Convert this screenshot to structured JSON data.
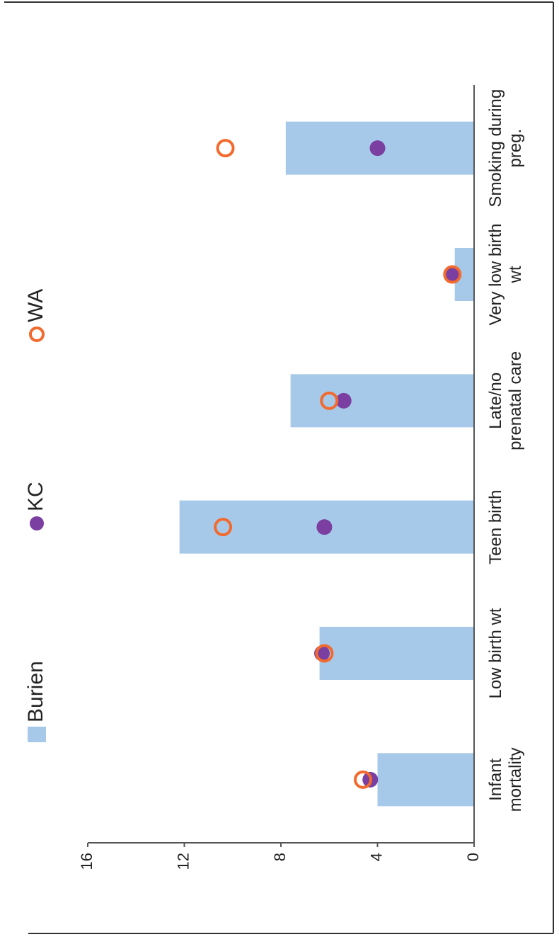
{
  "chart_data": {
    "type": "bar",
    "categories": [
      [
        "Infant",
        "mortality"
      ],
      [
        "Low birth wt"
      ],
      [
        "Teen birth"
      ],
      [
        "Late/no",
        "prenatal care"
      ],
      [
        "Very low birth",
        "wt"
      ],
      [
        "Smoking during",
        "preg."
      ]
    ],
    "series": [
      {
        "name": "Burien",
        "kind": "bar",
        "color": "#a7c9e9",
        "values": [
          4.0,
          6.4,
          12.2,
          7.6,
          0.8,
          7.8
        ]
      },
      {
        "name": "KC",
        "kind": "dot",
        "color": "#7a3fa0",
        "values": [
          4.3,
          6.3,
          6.2,
          5.4,
          0.9,
          4.0
        ]
      },
      {
        "name": "WA",
        "kind": "ring",
        "color": "#f26a2d",
        "values": [
          4.6,
          6.2,
          10.4,
          6.0,
          0.9,
          10.3
        ]
      }
    ],
    "yticks": [
      0,
      4,
      8,
      12,
      16
    ],
    "ylim": [
      0,
      16
    ],
    "legend_position": "top",
    "grid": false,
    "orientation": "rotated-90-ccw"
  }
}
